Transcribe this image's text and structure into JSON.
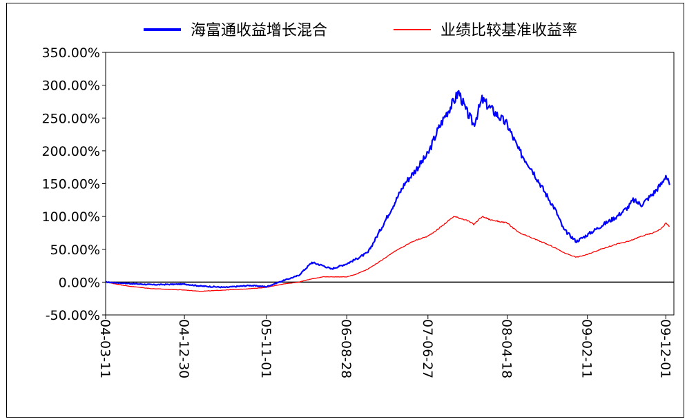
{
  "chart_data": {
    "type": "line",
    "title": "",
    "xlabel": "",
    "ylabel": "",
    "ylim": [
      -50,
      350
    ],
    "y_ticks": [
      "350.00%",
      "300.00%",
      "250.00%",
      "200.00%",
      "150.00%",
      "100.00%",
      "50.00%",
      "0.00%",
      "-50.00%"
    ],
    "x_ticks": [
      "04-03-11",
      "04-12-30",
      "05-11-01",
      "06-08-28",
      "07-06-27",
      "08-04-18",
      "09-02-11",
      "09-12-01"
    ],
    "legend_position": "top",
    "grid": false,
    "series": [
      {
        "name": "海富通收益增长混合",
        "color": "#0000ff",
        "x": [
          "04-03-11",
          "04-06-01",
          "04-09-01",
          "04-12-30",
          "05-03-01",
          "05-06-01",
          "05-09-01",
          "05-11-01",
          "06-01-01",
          "06-03-01",
          "06-04-20",
          "06-06-01",
          "06-07-01",
          "06-08-28",
          "06-10-01",
          "06-11-15",
          "07-01-01",
          "07-02-15",
          "07-04-01",
          "07-05-01",
          "07-06-27",
          "07-08-01",
          "07-09-01",
          "07-10-01",
          "07-10-20",
          "07-11-15",
          "07-12-15",
          "08-01-15",
          "08-02-15",
          "08-04-18",
          "08-06-01",
          "08-07-15",
          "08-09-01",
          "08-10-15",
          "08-11-15",
          "09-01-01",
          "09-02-11",
          "09-04-01",
          "09-06-01",
          "09-07-15",
          "09-08-01",
          "09-09-01",
          "09-10-15",
          "09-11-15",
          "09-12-01",
          "09-12-15"
        ],
        "y": [
          0,
          -2,
          -4,
          -3,
          -6,
          -8,
          -5,
          -7,
          2,
          10,
          30,
          25,
          20,
          28,
          35,
          45,
          80,
          115,
          150,
          165,
          195,
          230,
          255,
          275,
          290,
          262,
          240,
          278,
          265,
          240,
          200,
          175,
          140,
          110,
          80,
          62,
          72,
          85,
          100,
          115,
          125,
          118,
          135,
          150,
          163,
          148
        ]
      },
      {
        "name": "业绩比较基准收益率",
        "color": "#ff0000",
        "x": [
          "04-03-11",
          "04-06-01",
          "04-09-01",
          "04-12-30",
          "05-03-01",
          "05-06-01",
          "05-09-01",
          "05-11-01",
          "06-01-01",
          "06-03-01",
          "06-04-20",
          "06-06-01",
          "06-08-28",
          "06-10-01",
          "06-11-15",
          "07-01-01",
          "07-02-15",
          "07-04-01",
          "07-05-01",
          "07-06-27",
          "07-08-01",
          "07-09-01",
          "07-10-01",
          "07-11-15",
          "07-12-15",
          "08-01-15",
          "08-02-15",
          "08-04-18",
          "08-06-01",
          "08-07-15",
          "08-09-01",
          "08-10-15",
          "08-11-15",
          "09-01-01",
          "09-02-11",
          "09-04-01",
          "09-06-01",
          "09-07-15",
          "09-09-01",
          "09-10-15",
          "09-11-15",
          "09-12-01",
          "09-12-15"
        ],
        "y": [
          0,
          -6,
          -10,
          -12,
          -14,
          -12,
          -10,
          -8,
          -3,
          0,
          5,
          8,
          8,
          12,
          20,
          32,
          45,
          55,
          62,
          70,
          80,
          90,
          100,
          95,
          88,
          100,
          95,
          90,
          75,
          68,
          60,
          52,
          45,
          38,
          42,
          50,
          58,
          62,
          70,
          75,
          82,
          90,
          85
        ]
      }
    ]
  }
}
